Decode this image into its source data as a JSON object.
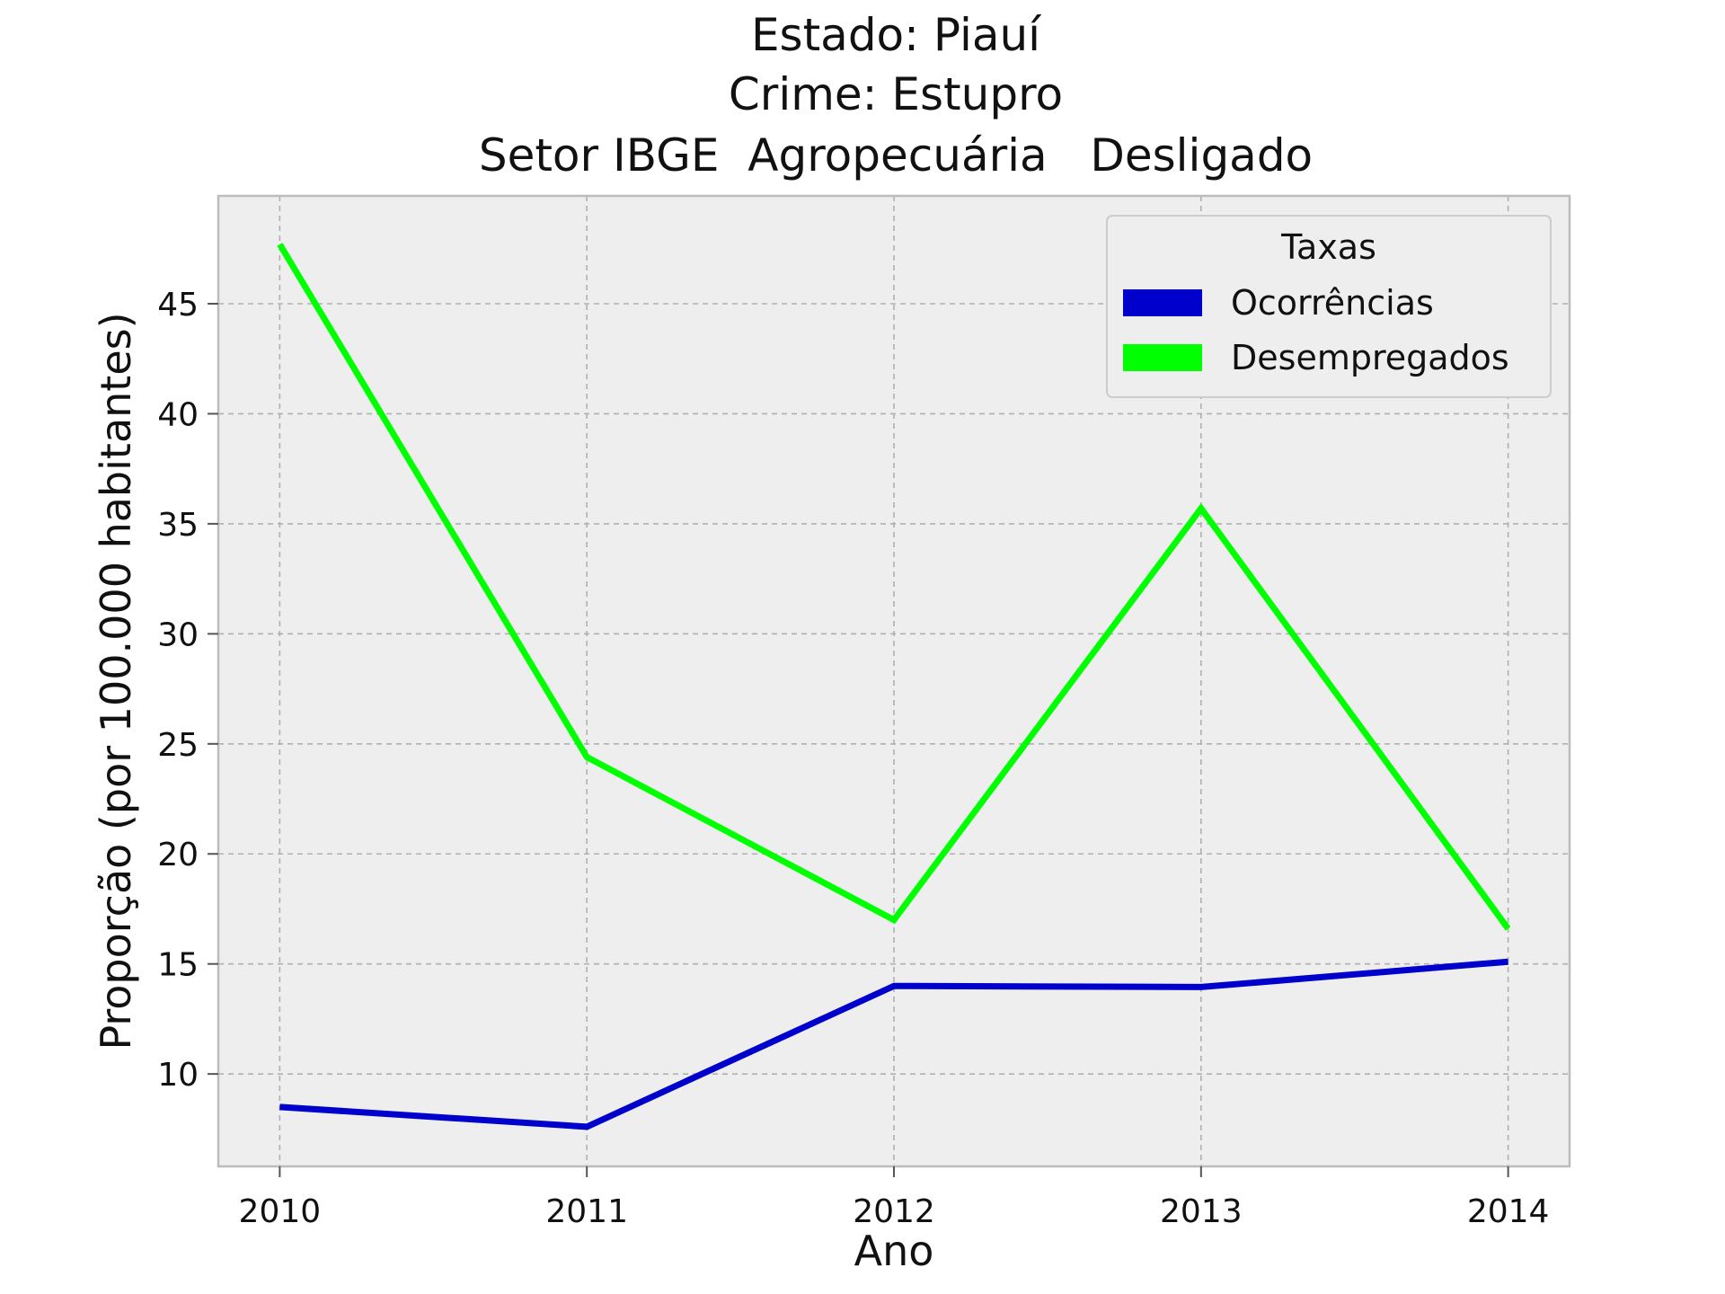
{
  "chart_data": {
    "type": "line",
    "title_lines": [
      "Estado: Piauí",
      "Crime: Estupro",
      "Setor IBGE  Agropecuária   Desligado"
    ],
    "xlabel": "Ano",
    "ylabel": "Proporção (por 100.000 habitantes)",
    "x": [
      2010,
      2011,
      2012,
      2013,
      2014
    ],
    "x_tick_labels": [
      "2010",
      "2011",
      "2012",
      "2013",
      "2014"
    ],
    "y_ticks": [
      10,
      15,
      20,
      25,
      30,
      35,
      40,
      45
    ],
    "y_tick_labels": [
      "10",
      "15",
      "20",
      "25",
      "30",
      "35",
      "40",
      "45"
    ],
    "xlim": [
      2009.8,
      2014.2
    ],
    "ylim": [
      5.8,
      49.9
    ],
    "grid": true,
    "legend": {
      "title": "Taxas",
      "position": "top-right"
    },
    "series": [
      {
        "name": "Ocorrências",
        "color": "#0000cc",
        "values": [
          8.5,
          7.6,
          14.0,
          13.95,
          15.1
        ]
      },
      {
        "name": "Desempregados",
        "color": "#00ff00",
        "values": [
          47.7,
          24.4,
          17.0,
          35.7,
          16.6
        ]
      }
    ]
  },
  "style": {
    "plot_background": "#eeeeee",
    "frame_color": "#bcbcbc"
  }
}
